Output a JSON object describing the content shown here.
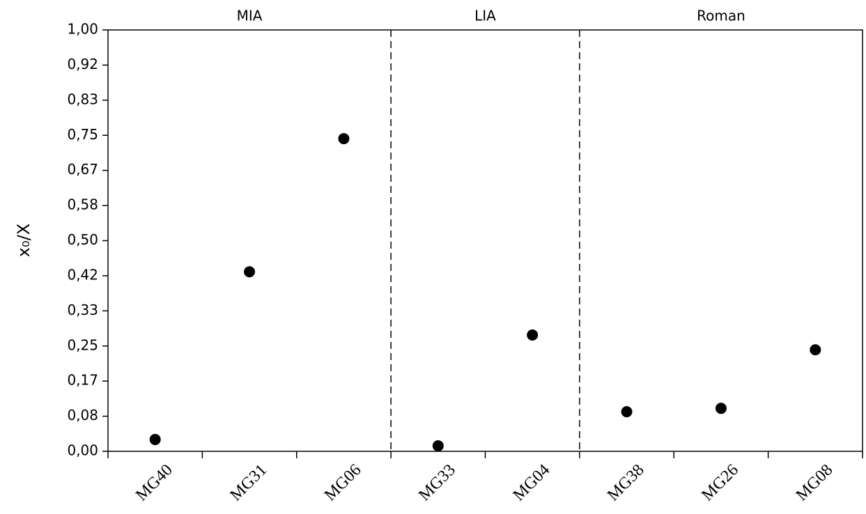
{
  "chart_data": {
    "type": "scatter",
    "y_label": "x₀/X",
    "groups": [
      {
        "name": "MIA",
        "categories": [
          "MG40",
          "MG31",
          "MG06"
        ]
      },
      {
        "name": "LIA",
        "categories": [
          "MG33",
          "MG04"
        ]
      },
      {
        "name": "Roman",
        "categories": [
          "MG38",
          "MG26",
          "MG08"
        ]
      }
    ],
    "values": [
      0.028,
      0.426,
      0.742,
      0.013,
      0.276,
      0.094,
      0.102,
      0.241
    ],
    "color": "#000000",
    "ylim": [
      0,
      1
    ],
    "yticks": [
      {
        "value": 0,
        "label": "0,00"
      },
      {
        "value": 0.0833,
        "label": "0,08"
      },
      {
        "value": 0.1667,
        "label": "0,17"
      },
      {
        "value": 0.25,
        "label": "0,25"
      },
      {
        "value": 0.3333,
        "label": "0,33"
      },
      {
        "value": 0.4167,
        "label": "0,42"
      },
      {
        "value": 0.5,
        "label": "0,50"
      },
      {
        "value": 0.5833,
        "label": "0,58"
      },
      {
        "value": 0.6667,
        "label": "0,67"
      },
      {
        "value": 0.75,
        "label": "0,75"
      },
      {
        "value": 0.8333,
        "label": "0,83"
      },
      {
        "value": 0.9167,
        "label": "0,92"
      },
      {
        "value": 1,
        "label": "1,00"
      }
    ]
  }
}
